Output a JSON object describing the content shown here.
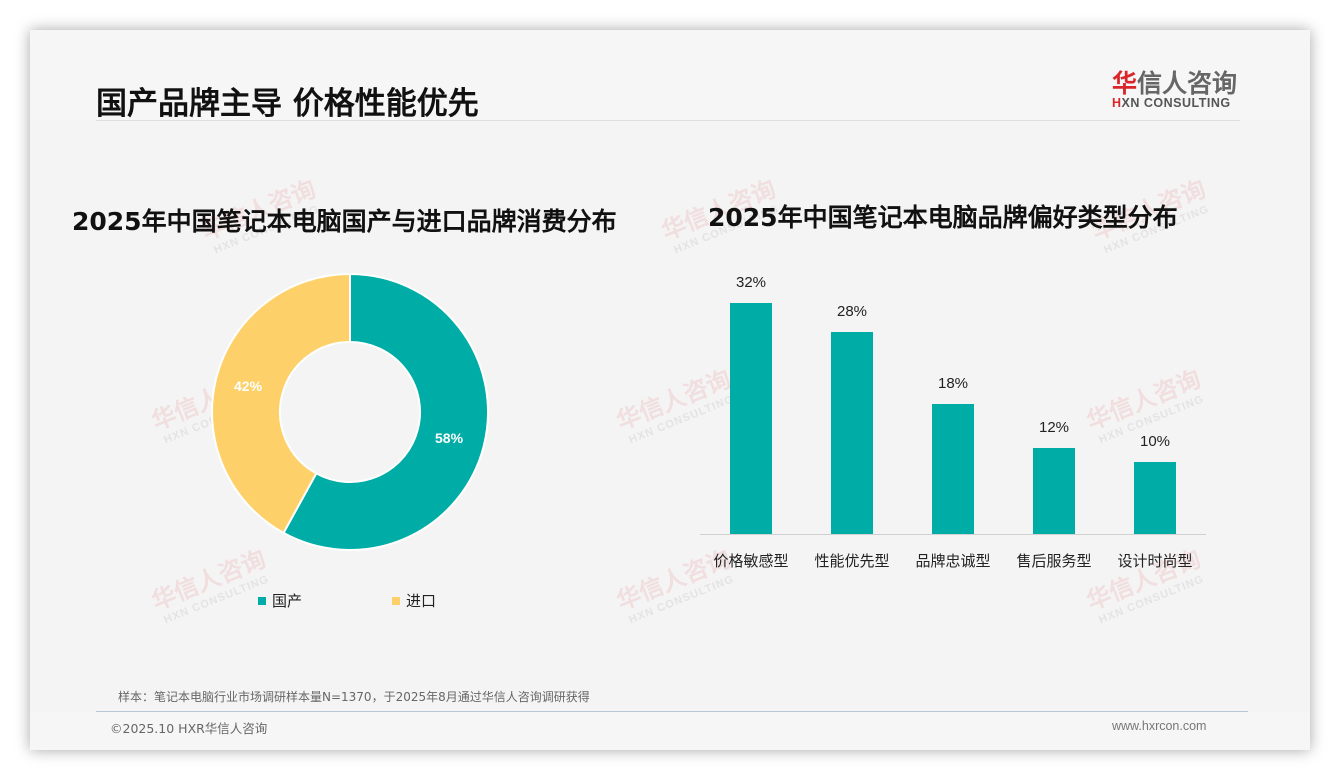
{
  "header": {
    "title": "国产品牌主导 价格性能优先",
    "logo_cn_first": "华",
    "logo_cn_rest": "信人咨询",
    "logo_en_first": "H",
    "logo_en_rest": "XN CONSULTING"
  },
  "watermark": {
    "cn": "华信人咨询",
    "en": "HXN CONSULTING"
  },
  "colors": {
    "teal": "#00ada6",
    "yellow": "#fdd06a",
    "accent_red": "#d9262b"
  },
  "chart_data": [
    {
      "type": "pie",
      "variant": "donut",
      "title": "2025年中国笔记本电脑国产与进口品牌消费分布",
      "categories": [
        "国产",
        "进口"
      ],
      "values": [
        58,
        42
      ],
      "labels": [
        "58%",
        "42%"
      ],
      "colors": [
        "#00ada6",
        "#fdd06a"
      ],
      "legend_position": "bottom"
    },
    {
      "type": "bar",
      "title": "2025年中国笔记本电脑品牌偏好类型分布",
      "categories": [
        "价格敏感型",
        "性能优先型",
        "品牌忠诚型",
        "售后服务型",
        "设计时尚型"
      ],
      "values": [
        32,
        28,
        18,
        12,
        10
      ],
      "labels": [
        "32%",
        "28%",
        "18%",
        "12%",
        "10%"
      ],
      "unit": "%",
      "color": "#00ada6",
      "xlabel": "",
      "ylabel": "",
      "grid": false,
      "ylim": [
        0,
        32
      ]
    }
  ],
  "pie": {
    "title": "2025年中国笔记本电脑国产与进口品牌消费分布",
    "labels": [
      "58%",
      "42%"
    ],
    "legend": [
      "国产",
      "进口"
    ]
  },
  "bar": {
    "title": "2025年中国笔记本电脑品牌偏好类型分布",
    "values": [
      "32%",
      "28%",
      "18%",
      "12%",
      "10%"
    ],
    "categories": [
      "价格敏感型",
      "性能优先型",
      "品牌忠诚型",
      "售后服务型",
      "设计时尚型"
    ]
  },
  "footer": {
    "note": "样本：笔记本电脑行业市场调研样本量N=1370，于2025年8月通过华信人咨询调研获得",
    "copyright": "©2025.10 HXR华信人咨询",
    "website": "www.hxrcon.com"
  }
}
